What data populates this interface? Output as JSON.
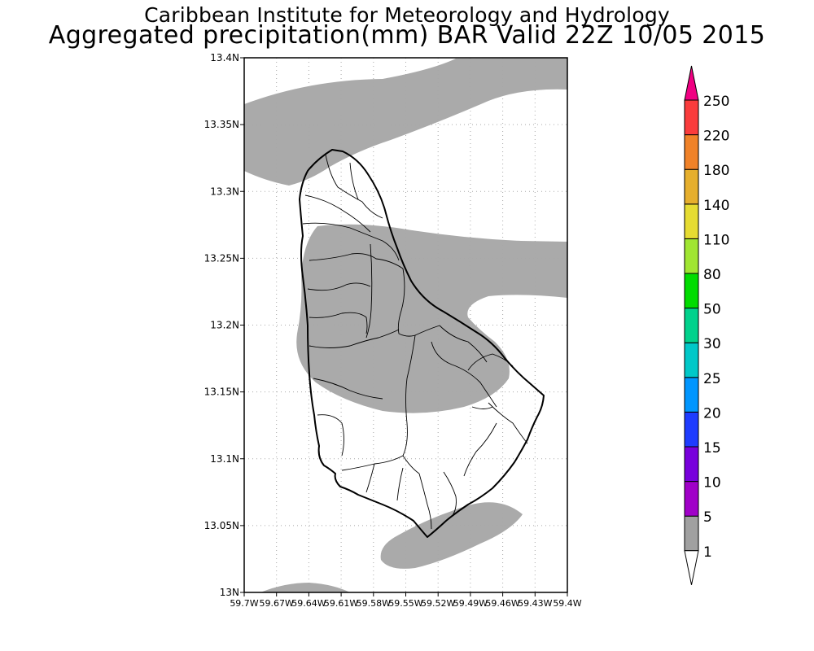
{
  "header": {
    "line1": "Caribbean Institute for Meteorology and Hydrology",
    "line2": "Aggregated precipitation(mm) BAR Valid 22Z 10/05 2015"
  },
  "map": {
    "region": "Barbados",
    "lat_range": [
      13.0,
      13.4
    ],
    "lon_range": [
      -59.7,
      -59.4
    ],
    "y_tick_labels": [
      "13.4N",
      "13.35N",
      "13.3N",
      "13.25N",
      "13.2N",
      "13.15N",
      "13.1N",
      "13.05N",
      "13N"
    ],
    "x_tick_labels": [
      "59.7W",
      "59.67W",
      "59.64W",
      "59.61W",
      "59.58W",
      "59.55W",
      "59.52W",
      "59.49W",
      "59.46W",
      "59.43W",
      "59.4W"
    ],
    "gridlines": "dotted",
    "shaded_precip_color": "#aaaaaa",
    "coastline_color": "#000000"
  },
  "colorbar": {
    "labels": [
      "1",
      "5",
      "10",
      "15",
      "20",
      "25",
      "30",
      "50",
      "80",
      "110",
      "140",
      "180",
      "220",
      "250"
    ],
    "colors": [
      "#ffffff",
      "#a0a0a0",
      "#a000c8",
      "#7800dc",
      "#1e3cff",
      "#0096ff",
      "#00c8c8",
      "#00d28c",
      "#00dc00",
      "#a0e632",
      "#e6dc32",
      "#e6af2d",
      "#f08228",
      "#fa3c3c",
      "#f00082"
    ]
  }
}
